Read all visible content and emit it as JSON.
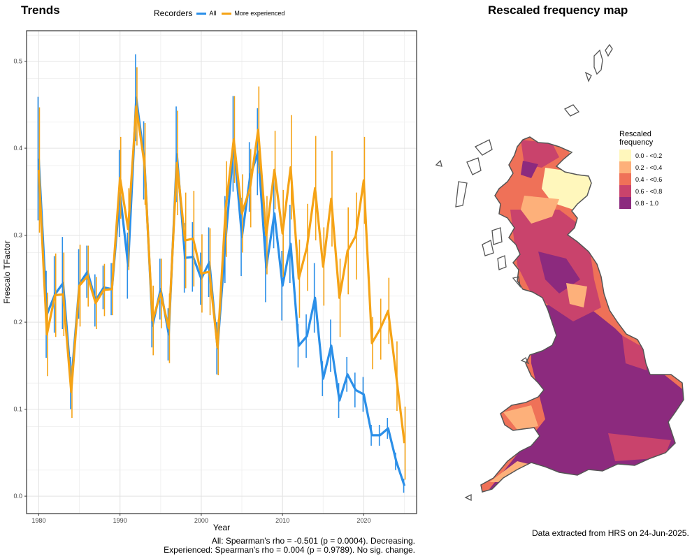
{
  "trends_title": "Trends",
  "map_title": "Rescaled frequency map",
  "legend": {
    "title": "Recorders",
    "items": [
      {
        "label": "All",
        "color": "#2b8fe8"
      },
      {
        "label": "More experienced",
        "color": "#f5a316"
      }
    ]
  },
  "chart_data": {
    "type": "line",
    "xlabel": "Year",
    "ylabel": "Frescalo TFactor",
    "xlim": [
      1978.5,
      2026.5
    ],
    "ylim": [
      -0.02,
      0.535
    ],
    "x_ticks": [
      1980,
      1990,
      2000,
      2010,
      2020
    ],
    "y_ticks": [
      0.0,
      0.1,
      0.2,
      0.3,
      0.4,
      0.5
    ],
    "grid": true,
    "x": [
      1980,
      1981,
      1982,
      1983,
      1984,
      1985,
      1986,
      1987,
      1988,
      1989,
      1990,
      1991,
      1992,
      1993,
      1994,
      1995,
      1996,
      1997,
      1998,
      1999,
      2000,
      2001,
      2002,
      2003,
      2004,
      2005,
      2006,
      2007,
      2008,
      2009,
      2010,
      2011,
      2012,
      2013,
      2014,
      2015,
      2016,
      2017,
      2018,
      2019,
      2020,
      2021,
      2022,
      2023,
      2024,
      2025
    ],
    "series": [
      {
        "name": "All",
        "color": "#2b8fe8",
        "values": [
          0.388,
          0.209,
          0.232,
          0.245,
          0.13,
          0.244,
          0.258,
          0.225,
          0.24,
          0.238,
          0.348,
          0.265,
          0.458,
          0.386,
          0.196,
          0.238,
          0.186,
          0.393,
          0.274,
          0.275,
          0.25,
          0.269,
          0.17,
          0.295,
          0.405,
          0.298,
          0.367,
          0.396,
          0.263,
          0.325,
          0.242,
          0.29,
          0.173,
          0.184,
          0.228,
          0.135,
          0.173,
          0.11,
          0.14,
          0.122,
          0.117,
          0.07,
          0.07,
          0.078,
          0.04,
          0.012
        ],
        "err": [
          0.071,
          0.05,
          0.044,
          0.053,
          0.03,
          0.04,
          0.03,
          0.03,
          0.025,
          0.03,
          0.05,
          0.038,
          0.05,
          0.045,
          0.025,
          0.035,
          0.03,
          0.055,
          0.04,
          0.04,
          0.03,
          0.04,
          0.03,
          0.05,
          0.055,
          0.045,
          0.04,
          0.05,
          0.04,
          0.04,
          0.04,
          0.045,
          0.025,
          0.025,
          0.04,
          0.02,
          0.03,
          0.02,
          0.02,
          0.02,
          0.02,
          0.012,
          0.012,
          0.012,
          0.01,
          0.008
        ]
      },
      {
        "name": "More experienced",
        "color": "#f5a316",
        "values": [
          0.375,
          0.186,
          0.231,
          0.232,
          0.12,
          0.242,
          0.253,
          0.222,
          0.237,
          0.238,
          0.366,
          0.307,
          0.448,
          0.382,
          0.202,
          0.233,
          0.193,
          0.383,
          0.294,
          0.296,
          0.256,
          0.258,
          0.171,
          0.33,
          0.41,
          0.325,
          0.354,
          0.421,
          0.3,
          0.375,
          0.302,
          0.378,
          0.25,
          0.286,
          0.354,
          0.264,
          0.342,
          0.228,
          0.282,
          0.299,
          0.363,
          0.176,
          0.192,
          0.213,
          0.138,
          0.061
        ],
        "err": [
          0.072,
          0.048,
          0.048,
          0.048,
          0.03,
          0.047,
          0.035,
          0.03,
          0.03,
          0.03,
          0.047,
          0.047,
          0.045,
          0.047,
          0.04,
          0.04,
          0.04,
          0.06,
          0.055,
          0.055,
          0.045,
          0.05,
          0.032,
          0.055,
          0.05,
          0.045,
          0.045,
          0.05,
          0.045,
          0.045,
          0.05,
          0.06,
          0.045,
          0.05,
          0.06,
          0.045,
          0.055,
          0.045,
          0.05,
          0.05,
          0.05,
          0.03,
          0.035,
          0.038,
          0.04,
          0.042
        ]
      }
    ]
  },
  "stats_all": "All: Spearman's rho = -0.501 (p = 0.0004). Decreasing.",
  "stats_exp": "Experienced: Spearman's rho = 0.004 (p = 0.9789). No sig. change.",
  "source_note": "Data extracted from HRS on 24-Jun-2025.",
  "map_legend": {
    "title": "Rescaled frequency",
    "items": [
      {
        "label": "0.0 - <0.2",
        "color": "#fff7bc"
      },
      {
        "label": "0.2 - <0.4",
        "color": "#fdb07a"
      },
      {
        "label": "0.4 - <0.6",
        "color": "#ef7158"
      },
      {
        "label": "0.6 - <0.8",
        "color": "#c9436c"
      },
      {
        "label": "0.8 - 1.0",
        "color": "#8c2a7e"
      }
    ]
  }
}
